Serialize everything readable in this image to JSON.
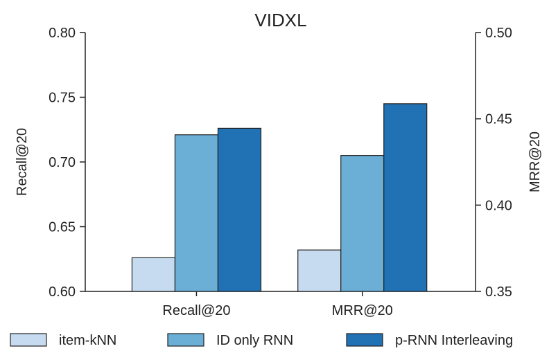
{
  "chart_data": {
    "type": "bar",
    "title": "VIDXL",
    "categories": [
      "Recall@20",
      "MRR@20"
    ],
    "series": [
      {
        "name": "item-kNN",
        "color": "#c6dbef",
        "values": [
          0.626,
          0.632
        ]
      },
      {
        "name": "ID only RNN",
        "color": "#6baed6",
        "values": [
          0.721,
          0.705
        ]
      },
      {
        "name": "p-RNN Interleaving",
        "color": "#2171b5",
        "values": [
          0.726,
          0.745
        ]
      }
    ],
    "ylabel_left": "Recall@20",
    "ylabel_right": "MRR@20",
    "ylim_left": [
      0.6,
      0.8
    ],
    "ylim_right": [
      0.35,
      0.5
    ],
    "yticks_left": [
      "0.60",
      "0.65",
      "0.70",
      "0.75",
      "0.80"
    ],
    "yticks_right": [
      "0.35",
      "0.40",
      "0.45",
      "0.50"
    ],
    "grid": false,
    "legend_position": "bottom"
  }
}
